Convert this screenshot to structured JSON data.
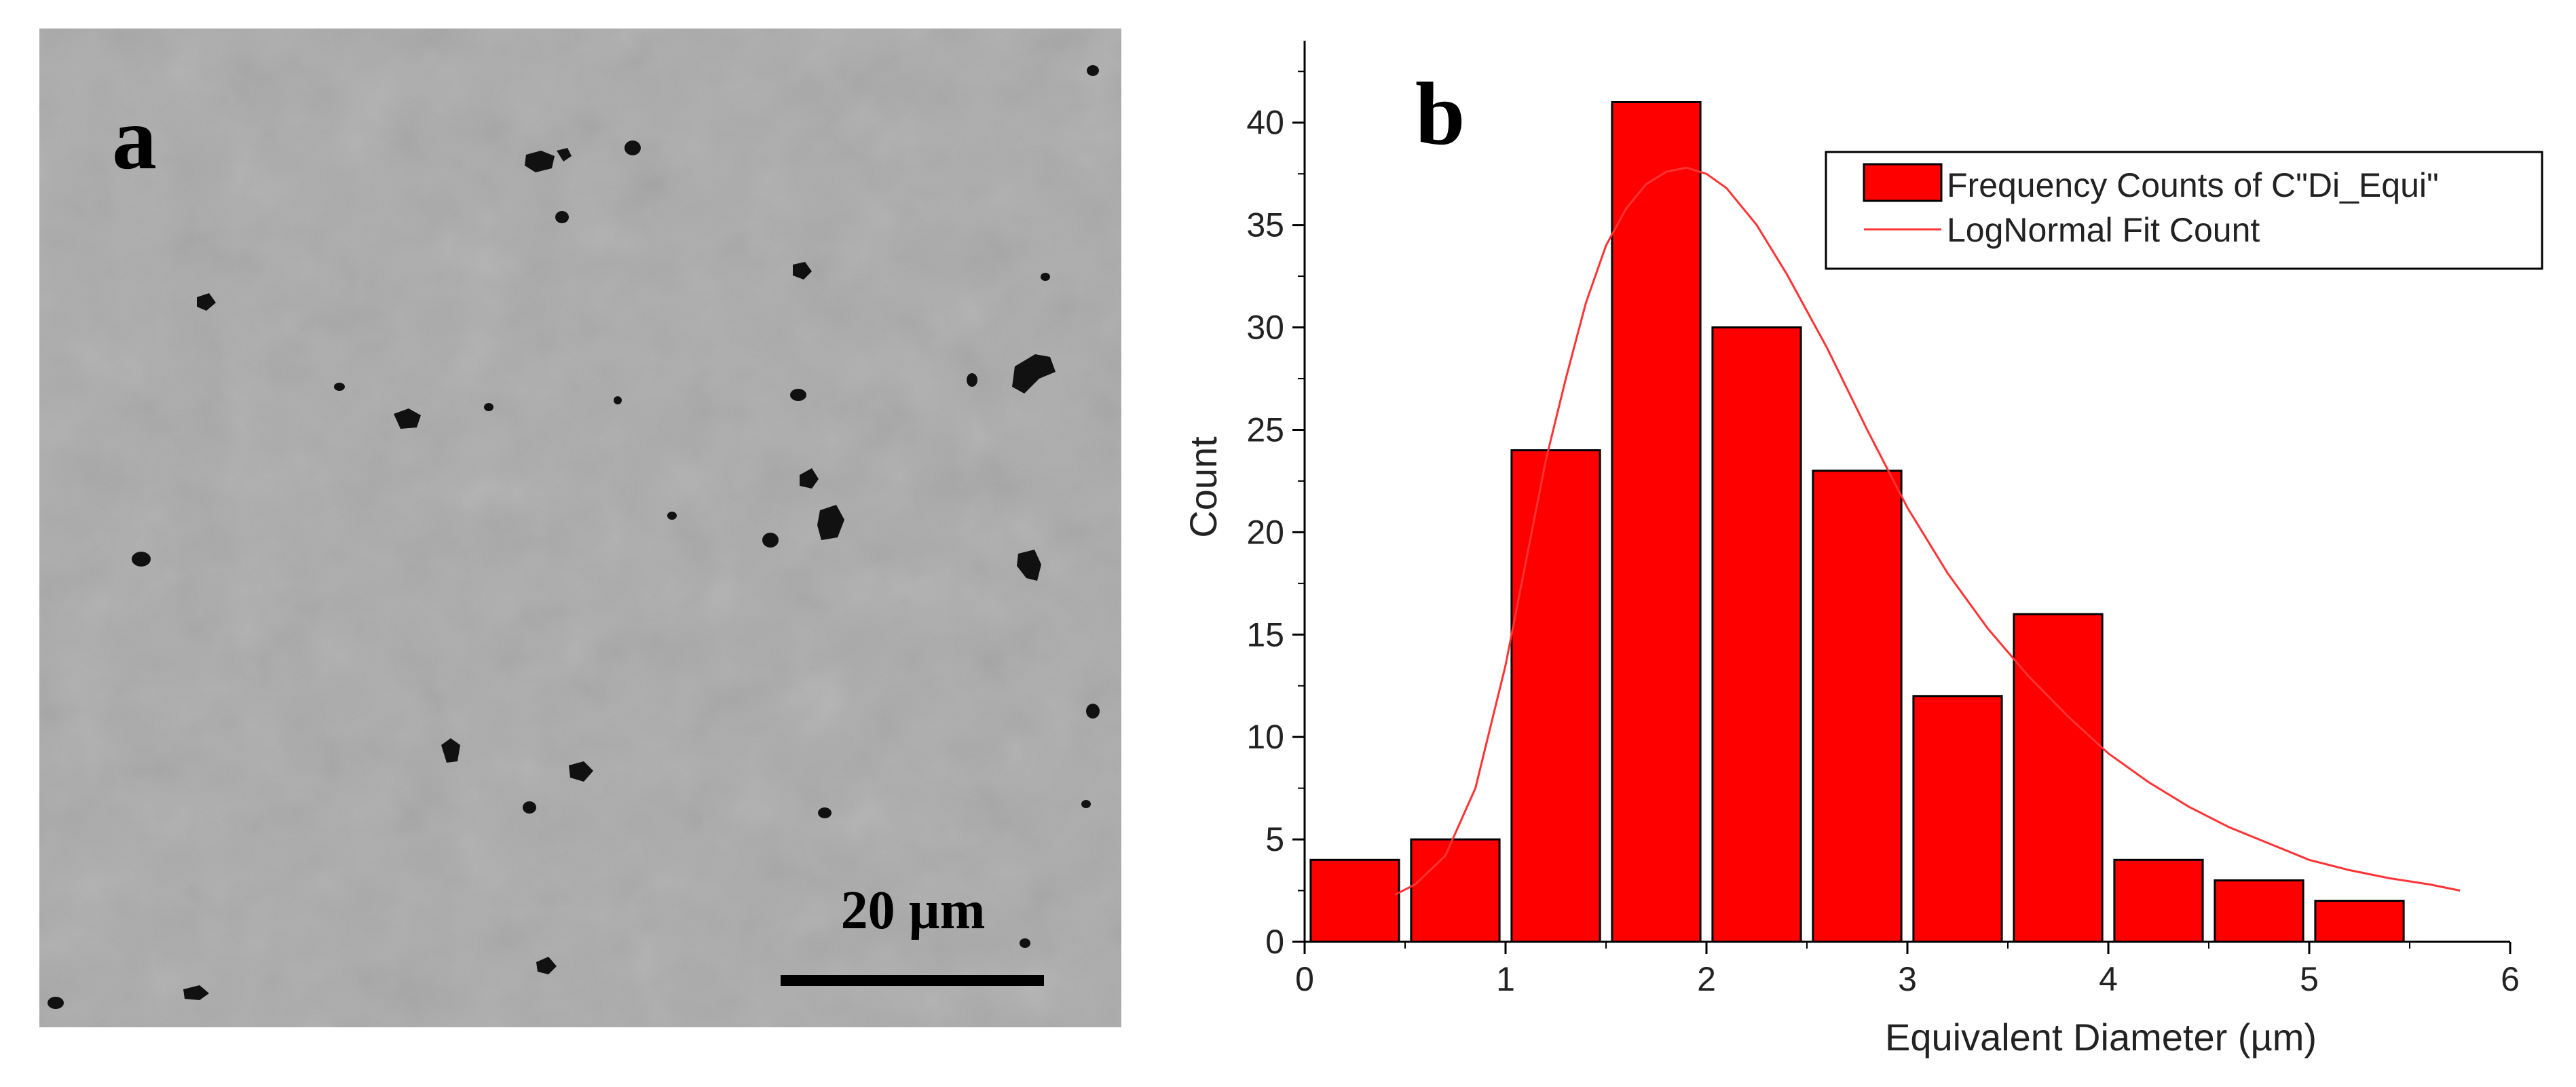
{
  "panel_a": {
    "label": "a",
    "scale_bar_text": "20 µm"
  },
  "panel_b": {
    "label": "b"
  },
  "colors": {
    "bar_fill": "#ff0000",
    "bar_stroke": "#000000",
    "fit_line": "#ff3333",
    "axis": "#000000",
    "micrograph_base": "#a9a9a9",
    "pore": "#111111"
  },
  "chart_data": {
    "type": "bar",
    "title": "",
    "xlabel": "Equivalent  Diameter (µm)",
    "ylabel": "Count",
    "xlim": [
      0,
      6
    ],
    "ylim": [
      0,
      44
    ],
    "bin_width": 0.5,
    "x_ticks": [
      0,
      1,
      2,
      3,
      4,
      5,
      6
    ],
    "y_ticks": [
      0,
      5,
      10,
      15,
      20,
      25,
      30,
      35,
      40
    ],
    "series": [
      {
        "name": "Frequency Counts of C\"Di_Equi\"",
        "type": "bar",
        "bin_centers": [
          0.25,
          0.75,
          1.25,
          1.75,
          2.25,
          2.75,
          3.25,
          3.75,
          4.25,
          4.75,
          5.25
        ],
        "values": [
          4,
          5,
          24,
          41,
          30,
          23,
          12,
          16,
          4,
          3,
          2
        ]
      },
      {
        "name": "LogNormal Fit Count",
        "type": "line",
        "x": [
          0.45,
          0.55,
          0.7,
          0.85,
          1.0,
          1.1,
          1.2,
          1.3,
          1.4,
          1.5,
          1.6,
          1.7,
          1.8,
          1.9,
          2.0,
          2.1,
          2.25,
          2.4,
          2.6,
          2.8,
          3.0,
          3.2,
          3.4,
          3.6,
          3.8,
          4.0,
          4.2,
          4.4,
          4.6,
          4.8,
          5.0,
          5.2,
          5.4,
          5.6,
          5.75
        ],
        "y": [
          2.3,
          2.8,
          4.2,
          7.5,
          13.5,
          18.5,
          23.5,
          27.5,
          31.2,
          34.0,
          35.8,
          37.0,
          37.6,
          37.8,
          37.5,
          36.8,
          35.0,
          32.6,
          29.0,
          25.0,
          21.2,
          18.0,
          15.3,
          13.0,
          11.0,
          9.2,
          7.8,
          6.6,
          5.6,
          4.8,
          4.0,
          3.5,
          3.1,
          2.8,
          2.5
        ]
      }
    ],
    "legend_position": "top-right"
  }
}
